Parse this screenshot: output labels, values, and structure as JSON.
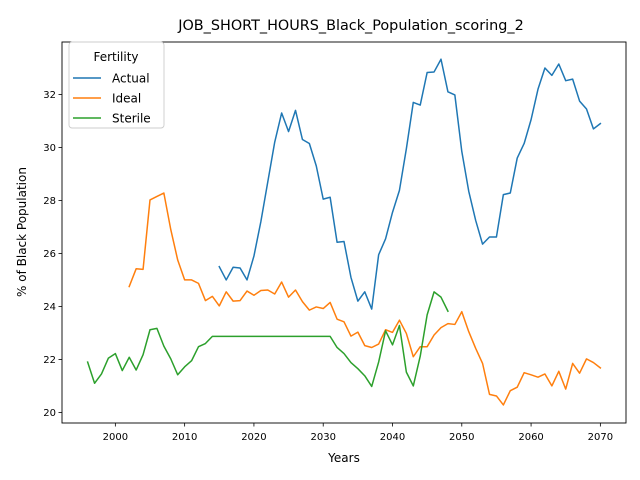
{
  "chart_data": {
    "type": "line",
    "title": "JOB_SHORT_HOURS_Black_Population_scoring_2",
    "xlabel": "Years",
    "ylabel": "% of Black Population",
    "xlim": [
      1992.3,
      2073.7
    ],
    "ylim": [
      19.6,
      33.98
    ],
    "xticks": [
      2000,
      2010,
      2020,
      2030,
      2040,
      2050,
      2060,
      2070
    ],
    "yticks": [
      20,
      22,
      24,
      26,
      28,
      30,
      32
    ],
    "grid": false,
    "legend": {
      "title": "Fertility",
      "placement": "upper-left"
    },
    "series": [
      {
        "name": "Actual",
        "color": "#1f77b4",
        "x": [
          2015,
          2016,
          2017,
          2018,
          2019,
          2020,
          2021,
          2022,
          2023,
          2024,
          2025,
          2026,
          2027,
          2028,
          2029,
          2030,
          2031,
          2032,
          2033,
          2034,
          2035,
          2036,
          2037,
          2038,
          2039,
          2040,
          2041,
          2042,
          2043,
          2044,
          2045,
          2046,
          2047,
          2048,
          2049,
          2050,
          2051,
          2052,
          2053,
          2054,
          2055,
          2056,
          2057,
          2058,
          2059,
          2060,
          2061,
          2062,
          2063,
          2064,
          2065,
          2066,
          2067,
          2068,
          2069,
          2070
        ],
        "y": [
          25.5,
          25.0,
          25.48,
          25.45,
          25.0,
          25.9,
          27.2,
          28.7,
          30.2,
          31.3,
          30.6,
          31.4,
          30.3,
          30.15,
          29.3,
          28.05,
          28.12,
          26.42,
          26.45,
          25.1,
          24.2,
          24.55,
          23.9,
          25.95,
          26.55,
          27.55,
          28.38,
          29.95,
          31.7,
          31.6,
          32.83,
          32.85,
          33.33,
          32.1,
          31.98,
          29.85,
          28.35,
          27.25,
          26.35,
          26.62,
          26.62,
          28.22,
          28.28,
          29.6,
          30.15,
          31.05,
          32.2,
          33.0,
          32.72,
          33.15,
          32.52,
          32.58,
          31.75,
          31.45,
          30.7,
          30.9
        ]
      },
      {
        "name": "Ideal",
        "color": "#ff7f0e",
        "x": [
          2002,
          2003,
          2004,
          2005,
          2006,
          2007,
          2008,
          2009,
          2010,
          2011,
          2012,
          2013,
          2014,
          2015,
          2016,
          2017,
          2018,
          2019,
          2020,
          2021,
          2022,
          2023,
          2024,
          2025,
          2026,
          2027,
          2028,
          2029,
          2030,
          2031,
          2032,
          2033,
          2034,
          2035,
          2036,
          2037,
          2038,
          2039,
          2040,
          2041,
          2042,
          2043,
          2044,
          2045,
          2046,
          2047,
          2048,
          2049,
          2050,
          2051,
          2052,
          2053,
          2054,
          2055,
          2056,
          2057,
          2058,
          2059,
          2060,
          2061,
          2062,
          2063,
          2064,
          2065,
          2066,
          2067,
          2068,
          2069,
          2070
        ],
        "y": [
          24.75,
          25.42,
          25.4,
          28.02,
          28.15,
          28.28,
          26.9,
          25.75,
          25.0,
          25.0,
          24.87,
          24.22,
          24.38,
          24.02,
          24.55,
          24.2,
          24.22,
          24.58,
          24.42,
          24.6,
          24.62,
          24.47,
          24.92,
          24.35,
          24.62,
          24.18,
          23.86,
          23.98,
          23.92,
          24.15,
          23.52,
          23.42,
          22.88,
          23.03,
          22.52,
          22.45,
          22.58,
          23.12,
          23.02,
          23.48,
          22.98,
          22.1,
          22.48,
          22.48,
          22.92,
          23.2,
          23.35,
          23.32,
          23.8,
          23.05,
          22.42,
          21.85,
          20.68,
          20.62,
          20.28,
          20.82,
          20.95,
          21.5,
          21.42,
          21.33,
          21.45,
          21.0,
          21.55,
          20.88,
          21.85,
          21.48,
          22.02,
          21.88,
          21.68
        ]
      },
      {
        "name": "Sterile",
        "color": "#2ca02c",
        "x": [
          1996,
          1997,
          1998,
          1999,
          2000,
          2001,
          2002,
          2003,
          2004,
          2005,
          2006,
          2007,
          2008,
          2009,
          2010,
          2011,
          2012,
          2013,
          2014,
          2015,
          2016,
          2017,
          2018,
          2019,
          2020,
          2021,
          2022,
          2023,
          2024,
          2025,
          2026,
          2027,
          2028,
          2029,
          2030,
          2031,
          2032,
          2033,
          2034,
          2035,
          2036,
          2037,
          2038,
          2039,
          2040,
          2041,
          2042,
          2043,
          2044,
          2045,
          2046,
          2047,
          2048
        ],
        "y": [
          21.9,
          21.1,
          21.45,
          22.05,
          22.22,
          21.58,
          22.08,
          21.6,
          22.18,
          23.12,
          23.17,
          22.5,
          22.02,
          21.42,
          21.72,
          21.95,
          22.48,
          22.6,
          22.87,
          22.87,
          22.87,
          22.87,
          22.87,
          22.87,
          22.87,
          22.87,
          22.87,
          22.87,
          22.87,
          22.87,
          22.87,
          22.87,
          22.87,
          22.87,
          22.87,
          22.87,
          22.45,
          22.22,
          21.88,
          21.65,
          21.38,
          20.98,
          21.9,
          23.08,
          22.55,
          23.28,
          21.52,
          21.0,
          22.12,
          23.68,
          24.55,
          24.35,
          23.82
        ]
      }
    ]
  }
}
